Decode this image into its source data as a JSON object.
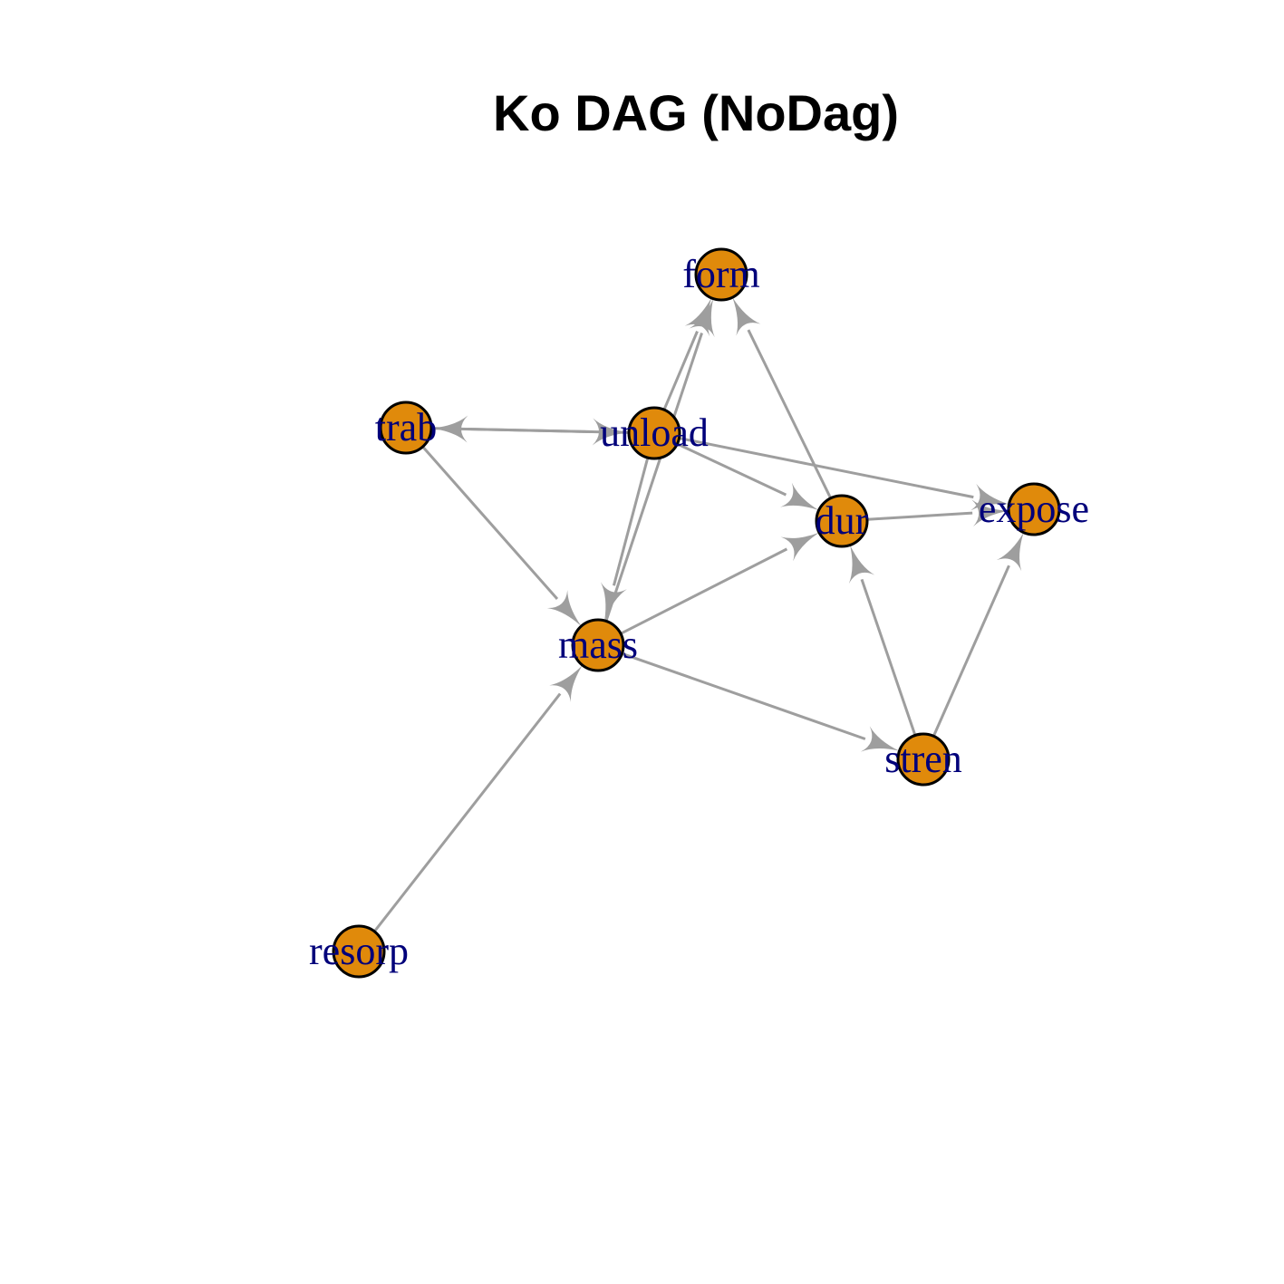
{
  "title": "Ko DAG (NoDag)",
  "colors": {
    "node_fill": "#e08a0b",
    "node_border": "#000000",
    "edge": "#9e9e9e",
    "label": "#00007a"
  },
  "nodes": [
    {
      "id": "form",
      "label": "form"
    },
    {
      "id": "trab",
      "label": "trab"
    },
    {
      "id": "unload",
      "label": "unload"
    },
    {
      "id": "expose",
      "label": "expose"
    },
    {
      "id": "dur",
      "label": "dur"
    },
    {
      "id": "mass",
      "label": "mass"
    },
    {
      "id": "stren",
      "label": "stren"
    },
    {
      "id": "resorp",
      "label": "resorp"
    }
  ],
  "edges": [
    {
      "from": "unload",
      "to": "trab"
    },
    {
      "from": "trab",
      "to": "unload"
    },
    {
      "from": "unload",
      "to": "form"
    },
    {
      "from": "mass",
      "to": "form"
    },
    {
      "from": "dur",
      "to": "form"
    },
    {
      "from": "unload",
      "to": "mass"
    },
    {
      "from": "unload",
      "to": "dur"
    },
    {
      "from": "unload",
      "to": "expose"
    },
    {
      "from": "trab",
      "to": "mass"
    },
    {
      "from": "mass",
      "to": "dur"
    },
    {
      "from": "dur",
      "to": "expose"
    },
    {
      "from": "stren",
      "to": "dur"
    },
    {
      "from": "stren",
      "to": "expose"
    },
    {
      "from": "mass",
      "to": "stren"
    },
    {
      "from": "resorp",
      "to": "mass"
    }
  ]
}
